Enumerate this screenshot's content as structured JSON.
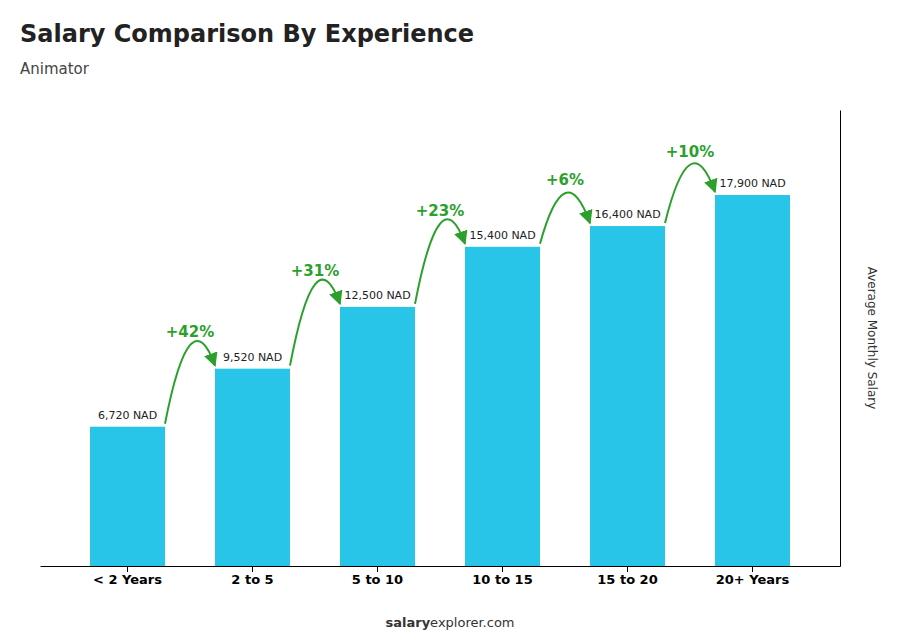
{
  "chart_data": {
    "type": "bar",
    "title": "Salary Comparison By Experience",
    "subtitle": "Animator",
    "categories": [
      "< 2 Years",
      "2 to 5",
      "5 to 10",
      "10 to 15",
      "15 to 20",
      "20+ Years"
    ],
    "values": [
      6720,
      9520,
      12500,
      15400,
      16400,
      17900
    ],
    "value_labels": [
      "6,720 NAD",
      "9,520 NAD",
      "12,500 NAD",
      "15,400 NAD",
      "16,400 NAD",
      "17,900 NAD"
    ],
    "data_labels": true,
    "color": "#29c5e8",
    "ylabel": "Average Monthly Salary",
    "ylim": [
      0,
      22000
    ],
    "yticks": [],
    "tick_labels": "x",
    "grid": false,
    "annotations": [
      {
        "text": "+42%",
        "from": "< 2 Years",
        "to": "2 to 5"
      },
      {
        "text": "+31%",
        "from": "2 to 5",
        "to": "5 to 10"
      },
      {
        "text": "+23%",
        "from": "5 to 10",
        "to": "10 to 15"
      },
      {
        "text": "+6%",
        "from": "10 to 15",
        "to": "15 to 20"
      },
      {
        "text": "+10%",
        "from": "15 to 20",
        "to": "20+ Years"
      }
    ],
    "footer": [
      "salary",
      "explorer.com"
    ]
  }
}
